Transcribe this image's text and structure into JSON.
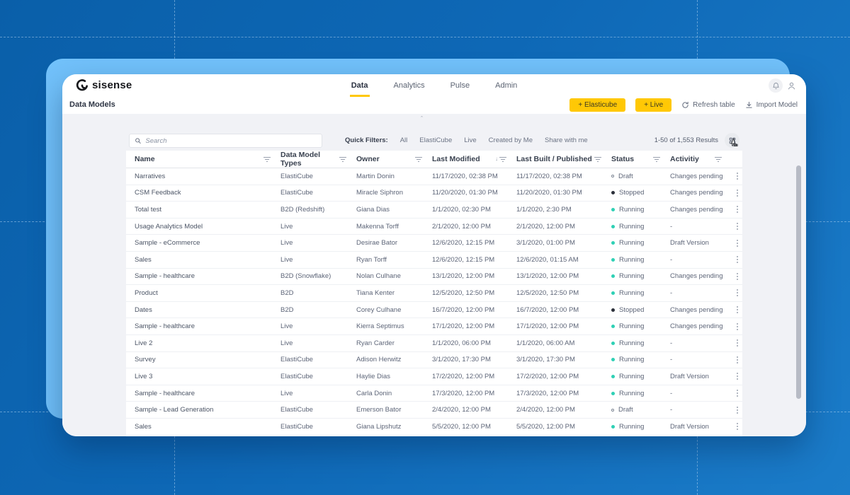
{
  "colors": {
    "accent": "#ffc805",
    "running": "#2fd0b5",
    "stopped": "#2b303a",
    "back_card": "#72c2fb",
    "background_blue": "#0e68b6"
  },
  "brand": {
    "name": "sisense"
  },
  "topnav": {
    "tabs": [
      {
        "label": "Data",
        "active": true
      },
      {
        "label": "Analytics",
        "active": false
      },
      {
        "label": "Pulse",
        "active": false
      },
      {
        "label": "Admin",
        "active": false
      }
    ],
    "icons": [
      "bell-icon",
      "user-icon"
    ]
  },
  "header": {
    "title": "Data Models",
    "primary_buttons": [
      {
        "label": "+ Elasticube"
      },
      {
        "label": "+ Live"
      }
    ],
    "secondary_actions": [
      {
        "label": "Refresh table",
        "icon": "refresh-icon"
      },
      {
        "label": "Import Model",
        "icon": "import-icon"
      }
    ]
  },
  "toolbar": {
    "search": {
      "placeholder": "Search"
    },
    "quick_filters_label": "Quick Filters:",
    "quick_filters": [
      "All",
      "ElastiCube",
      "Live",
      "Created by Me",
      "Share with me"
    ],
    "results_text": "1-50 of 1,553 Results",
    "view_toggle_icon": "grid-view-icon"
  },
  "table": {
    "columns": [
      {
        "label": "Name",
        "icon": "filter"
      },
      {
        "label": "Data Model Types",
        "icon": "filter"
      },
      {
        "label": "Owner",
        "icon": "filter"
      },
      {
        "label": "Last Modified",
        "icon": "sort"
      },
      {
        "label": "Last Built / Published",
        "icon": "filter"
      },
      {
        "label": "Status",
        "icon": "filter"
      },
      {
        "label": "Activitiy",
        "icon": "filter"
      }
    ],
    "rows": [
      {
        "name": "Narratives",
        "type": "ElastiCube",
        "owner": "Martin Donin",
        "modified": "11/17/2020, 02:38 PM",
        "built": "11/17/2020, 02:38 PM",
        "status": "Draft",
        "activity": "Changes pending"
      },
      {
        "name": "CSM Feedback",
        "type": "ElastiCube",
        "owner": "Miracle Siphron",
        "modified": "11/20/2020, 01:30 PM",
        "built": "11/20/2020, 01:30 PM",
        "status": "Stopped",
        "activity": "Changes pending"
      },
      {
        "name": "Total test",
        "type": "B2D (Redshift)",
        "owner": "Giana Dias",
        "modified": "1/1/2020, 02:30 PM",
        "built": "1/1/2020, 2:30 PM",
        "status": "Running",
        "activity": "Changes pending"
      },
      {
        "name": "Usage Analytics Model",
        "type": "Live",
        "owner": "Makenna Torff",
        "modified": "2/1/2020, 12:00 PM",
        "built": "2/1/2020, 12:00 PM",
        "status": "Running",
        "activity": "-"
      },
      {
        "name": "Sample - eCommerce",
        "type": "Live",
        "owner": "Desirae Bator",
        "modified": "12/6/2020, 12:15 PM",
        "built": "3/1/2020, 01:00 PM",
        "status": "Running",
        "activity": "Draft Version"
      },
      {
        "name": "Sales",
        "type": "Live",
        "owner": "Ryan Torff",
        "modified": "12/6/2020, 12:15 PM",
        "built": "12/6/2020, 01:15 AM",
        "status": "Running",
        "activity": "-"
      },
      {
        "name": "Sample - healthcare",
        "type": "B2D (Snowflake)",
        "owner": "Nolan Culhane",
        "modified": "13/1/2020, 12:00 PM",
        "built": "13/1/2020, 12:00 PM",
        "status": "Running",
        "activity": "Changes pending"
      },
      {
        "name": "Product",
        "type": "B2D",
        "owner": "Tiana Kenter",
        "modified": "12/5/2020, 12:50 PM",
        "built": "12/5/2020, 12:50 PM",
        "status": "Running",
        "activity": "-"
      },
      {
        "name": "Dates",
        "type": "B2D",
        "owner": "Corey Culhane",
        "modified": "16/7/2020, 12:00 PM",
        "built": "16/7/2020, 12:00 PM",
        "status": "Stopped",
        "activity": "Changes pending"
      },
      {
        "name": "Sample - healthcare",
        "type": "Live",
        "owner": "Kierra Septimus",
        "modified": "17/1/2020, 12:00 PM",
        "built": "17/1/2020, 12:00 PM",
        "status": "Running",
        "activity": "Changes pending"
      },
      {
        "name": "Live 2",
        "type": "Live",
        "owner": "Ryan Carder",
        "modified": "1/1/2020, 06:00 PM",
        "built": "1/1/2020, 06:00 AM",
        "status": "Running",
        "activity": "-"
      },
      {
        "name": "Survey",
        "type": "ElastiCube",
        "owner": "Adison Herwitz",
        "modified": "3/1/2020, 17:30 PM",
        "built": "3/1/2020, 17:30 PM",
        "status": "Running",
        "activity": "-"
      },
      {
        "name": "Live 3",
        "type": "ElastiCube",
        "owner": "Haylie Dias",
        "modified": "17/2/2020, 12:00 PM",
        "built": "17/2/2020, 12:00 PM",
        "status": "Running",
        "activity": "Draft Version"
      },
      {
        "name": "Sample - healthcare",
        "type": "Live",
        "owner": "Carla Donin",
        "modified": "17/3/2020, 12:00 PM",
        "built": "17/3/2020, 12:00 PM",
        "status": "Running",
        "activity": "-"
      },
      {
        "name": "Sample - Lead Generation",
        "type": "ElastiCube",
        "owner": "Emerson Bator",
        "modified": "2/4/2020, 12:00 PM",
        "built": "2/4/2020, 12:00 PM",
        "status": "Draft",
        "activity": "-"
      },
      {
        "name": "Sales",
        "type": "ElastiCube",
        "owner": "Giana Lipshutz",
        "modified": "5/5/2020, 12:00 PM",
        "built": "5/5/2020, 12:00 PM",
        "status": "Running",
        "activity": "Draft Version"
      }
    ]
  }
}
